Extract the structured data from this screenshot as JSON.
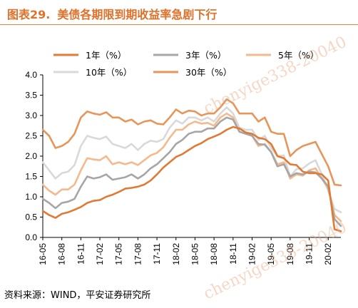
{
  "figure": {
    "number": "图表29.",
    "title": "美债各期限到期收益率急剧下行",
    "source": "资料来源：WIND，平安证券研究所"
  },
  "chart_data": {
    "type": "line",
    "title": "美债各期限到期收益率急剧下行",
    "xlabel": "",
    "ylabel": "",
    "ylim": [
      0,
      4.0
    ],
    "yticks": [
      "0.0",
      "0.5",
      "1.0",
      "1.5",
      "2.0",
      "2.5",
      "3.0",
      "3.5",
      "4.0"
    ],
    "x_tick_labels": [
      "16-05",
      "16-08",
      "16-11",
      "17-02",
      "17-05",
      "17-08",
      "17-11",
      "18-02",
      "18-05",
      "18-08",
      "18-11",
      "19-02",
      "19-05",
      "19-08",
      "19-11",
      "20-02"
    ],
    "x_range": [
      "2016-05",
      "2020-04"
    ],
    "grid": false,
    "legend_placement": "top",
    "series": [
      {
        "name": "1年（%）",
        "color": "#e07a35",
        "points": [
          [
            "2016-05",
            0.65
          ],
          [
            "2016-06",
            0.55
          ],
          [
            "2016-07",
            0.48
          ],
          [
            "2016-08",
            0.58
          ],
          [
            "2016-09",
            0.62
          ],
          [
            "2016-10",
            0.68
          ],
          [
            "2016-11",
            0.75
          ],
          [
            "2016-12",
            0.85
          ],
          [
            "2017-01",
            0.9
          ],
          [
            "2017-02",
            0.92
          ],
          [
            "2017-03",
            1.0
          ],
          [
            "2017-04",
            1.05
          ],
          [
            "2017-05",
            1.12
          ],
          [
            "2017-06",
            1.2
          ],
          [
            "2017-07",
            1.22
          ],
          [
            "2017-08",
            1.25
          ],
          [
            "2017-09",
            1.3
          ],
          [
            "2017-10",
            1.4
          ],
          [
            "2017-11",
            1.55
          ],
          [
            "2017-12",
            1.72
          ],
          [
            "2018-01",
            1.85
          ],
          [
            "2018-02",
            1.98
          ],
          [
            "2018-03",
            2.05
          ],
          [
            "2018-04",
            2.15
          ],
          [
            "2018-05",
            2.25
          ],
          [
            "2018-06",
            2.32
          ],
          [
            "2018-07",
            2.42
          ],
          [
            "2018-08",
            2.48
          ],
          [
            "2018-09",
            2.55
          ],
          [
            "2018-10",
            2.65
          ],
          [
            "2018-11",
            2.72
          ],
          [
            "2018-12",
            2.68
          ],
          [
            "2019-01",
            2.58
          ],
          [
            "2019-02",
            2.55
          ],
          [
            "2019-03",
            2.45
          ],
          [
            "2019-04",
            2.42
          ],
          [
            "2019-05",
            2.3
          ],
          [
            "2019-06",
            2.0
          ],
          [
            "2019-07",
            1.95
          ],
          [
            "2019-08",
            1.8
          ],
          [
            "2019-09",
            1.78
          ],
          [
            "2019-10",
            1.62
          ],
          [
            "2019-11",
            1.58
          ],
          [
            "2019-12",
            1.58
          ],
          [
            "2020-01",
            1.55
          ],
          [
            "2020-02",
            1.4
          ],
          [
            "2020-03",
            0.2
          ],
          [
            "2020-04",
            0.15
          ]
        ]
      },
      {
        "name": "3年（%）",
        "color": "#a6a6a6",
        "points": [
          [
            "2016-05",
            0.95
          ],
          [
            "2016-06",
            0.85
          ],
          [
            "2016-07",
            0.72
          ],
          [
            "2016-08",
            0.85
          ],
          [
            "2016-09",
            0.88
          ],
          [
            "2016-10",
            0.95
          ],
          [
            "2016-11",
            1.25
          ],
          [
            "2016-12",
            1.5
          ],
          [
            "2017-01",
            1.45
          ],
          [
            "2017-02",
            1.48
          ],
          [
            "2017-03",
            1.55
          ],
          [
            "2017-04",
            1.42
          ],
          [
            "2017-05",
            1.45
          ],
          [
            "2017-06",
            1.48
          ],
          [
            "2017-07",
            1.55
          ],
          [
            "2017-08",
            1.45
          ],
          [
            "2017-09",
            1.55
          ],
          [
            "2017-10",
            1.7
          ],
          [
            "2017-11",
            1.8
          ],
          [
            "2017-12",
            1.95
          ],
          [
            "2018-01",
            2.1
          ],
          [
            "2018-02",
            2.3
          ],
          [
            "2018-03",
            2.4
          ],
          [
            "2018-04",
            2.55
          ],
          [
            "2018-05",
            2.6
          ],
          [
            "2018-06",
            2.6
          ],
          [
            "2018-07",
            2.68
          ],
          [
            "2018-08",
            2.68
          ],
          [
            "2018-09",
            2.85
          ],
          [
            "2018-10",
            2.95
          ],
          [
            "2018-11",
            2.9
          ],
          [
            "2018-12",
            2.6
          ],
          [
            "2019-01",
            2.55
          ],
          [
            "2019-02",
            2.5
          ],
          [
            "2019-03",
            2.3
          ],
          [
            "2019-04",
            2.28
          ],
          [
            "2019-05",
            2.1
          ],
          [
            "2019-06",
            1.75
          ],
          [
            "2019-07",
            1.8
          ],
          [
            "2019-08",
            1.5
          ],
          [
            "2019-09",
            1.58
          ],
          [
            "2019-10",
            1.55
          ],
          [
            "2019-11",
            1.62
          ],
          [
            "2019-12",
            1.6
          ],
          [
            "2020-01",
            1.45
          ],
          [
            "2020-02",
            1.25
          ],
          [
            "2020-03",
            0.45
          ],
          [
            "2020-04",
            0.28
          ]
        ]
      },
      {
        "name": "5年（%）",
        "color": "#f4b98c",
        "points": [
          [
            "2016-05",
            1.3
          ],
          [
            "2016-06",
            1.15
          ],
          [
            "2016-07",
            1.05
          ],
          [
            "2016-08",
            1.18
          ],
          [
            "2016-09",
            1.18
          ],
          [
            "2016-10",
            1.3
          ],
          [
            "2016-11",
            1.65
          ],
          [
            "2016-12",
            1.95
          ],
          [
            "2017-01",
            1.92
          ],
          [
            "2017-02",
            1.9
          ],
          [
            "2017-03",
            2.0
          ],
          [
            "2017-04",
            1.8
          ],
          [
            "2017-05",
            1.85
          ],
          [
            "2017-06",
            1.8
          ],
          [
            "2017-07",
            1.85
          ],
          [
            "2017-08",
            1.78
          ],
          [
            "2017-09",
            1.9
          ],
          [
            "2017-10",
            2.02
          ],
          [
            "2017-11",
            2.08
          ],
          [
            "2017-12",
            2.22
          ],
          [
            "2018-01",
            2.45
          ],
          [
            "2018-02",
            2.65
          ],
          [
            "2018-03",
            2.65
          ],
          [
            "2018-04",
            2.78
          ],
          [
            "2018-05",
            2.85
          ],
          [
            "2018-06",
            2.8
          ],
          [
            "2018-07",
            2.82
          ],
          [
            "2018-08",
            2.75
          ],
          [
            "2018-09",
            2.95
          ],
          [
            "2018-10",
            3.05
          ],
          [
            "2018-11",
            2.95
          ],
          [
            "2018-12",
            2.6
          ],
          [
            "2019-01",
            2.55
          ],
          [
            "2019-02",
            2.5
          ],
          [
            "2019-03",
            2.25
          ],
          [
            "2019-04",
            2.3
          ],
          [
            "2019-05",
            2.1
          ],
          [
            "2019-06",
            1.8
          ],
          [
            "2019-07",
            1.85
          ],
          [
            "2019-08",
            1.45
          ],
          [
            "2019-09",
            1.55
          ],
          [
            "2019-10",
            1.52
          ],
          [
            "2019-11",
            1.65
          ],
          [
            "2019-12",
            1.7
          ],
          [
            "2020-01",
            1.45
          ],
          [
            "2020-02",
            1.2
          ],
          [
            "2020-03",
            0.55
          ],
          [
            "2020-04",
            0.4
          ]
        ]
      },
      {
        "name": "10年（%）",
        "color": "#d9d9d9",
        "points": [
          [
            "2016-05",
            1.85
          ],
          [
            "2016-06",
            1.65
          ],
          [
            "2016-07",
            1.45
          ],
          [
            "2016-08",
            1.58
          ],
          [
            "2016-09",
            1.62
          ],
          [
            "2016-10",
            1.78
          ],
          [
            "2016-11",
            2.25
          ],
          [
            "2016-12",
            2.5
          ],
          [
            "2017-01",
            2.45
          ],
          [
            "2017-02",
            2.42
          ],
          [
            "2017-03",
            2.48
          ],
          [
            "2017-04",
            2.3
          ],
          [
            "2017-05",
            2.25
          ],
          [
            "2017-06",
            2.2
          ],
          [
            "2017-07",
            2.3
          ],
          [
            "2017-08",
            2.15
          ],
          [
            "2017-09",
            2.3
          ],
          [
            "2017-10",
            2.38
          ],
          [
            "2017-11",
            2.35
          ],
          [
            "2017-12",
            2.42
          ],
          [
            "2018-01",
            2.7
          ],
          [
            "2018-02",
            2.88
          ],
          [
            "2018-03",
            2.8
          ],
          [
            "2018-04",
            2.95
          ],
          [
            "2018-05",
            2.95
          ],
          [
            "2018-06",
            2.88
          ],
          [
            "2018-07",
            2.95
          ],
          [
            "2018-08",
            2.85
          ],
          [
            "2018-09",
            3.05
          ],
          [
            "2018-10",
            3.2
          ],
          [
            "2018-11",
            3.05
          ],
          [
            "2018-12",
            2.7
          ],
          [
            "2019-01",
            2.65
          ],
          [
            "2019-02",
            2.65
          ],
          [
            "2019-03",
            2.4
          ],
          [
            "2019-04",
            2.5
          ],
          [
            "2019-05",
            2.2
          ],
          [
            "2019-06",
            2.0
          ],
          [
            "2019-07",
            2.02
          ],
          [
            "2019-08",
            1.5
          ],
          [
            "2019-09",
            1.68
          ],
          [
            "2019-10",
            1.7
          ],
          [
            "2019-11",
            1.82
          ],
          [
            "2019-12",
            1.9
          ],
          [
            "2020-01",
            1.55
          ],
          [
            "2020-02",
            1.15
          ],
          [
            "2020-03",
            0.7
          ],
          [
            "2020-04",
            0.62
          ]
        ]
      },
      {
        "name": "30年（%）",
        "color": "#e8955a",
        "points": [
          [
            "2016-05",
            2.65
          ],
          [
            "2016-06",
            2.5
          ],
          [
            "2016-07",
            2.2
          ],
          [
            "2016-08",
            2.25
          ],
          [
            "2016-09",
            2.35
          ],
          [
            "2016-10",
            2.55
          ],
          [
            "2016-11",
            2.95
          ],
          [
            "2016-12",
            3.1
          ],
          [
            "2017-01",
            3.05
          ],
          [
            "2017-02",
            3.02
          ],
          [
            "2017-03",
            3.08
          ],
          [
            "2017-04",
            2.95
          ],
          [
            "2017-05",
            2.95
          ],
          [
            "2017-06",
            2.85
          ],
          [
            "2017-07",
            2.9
          ],
          [
            "2017-08",
            2.78
          ],
          [
            "2017-09",
            2.85
          ],
          [
            "2017-10",
            2.88
          ],
          [
            "2017-11",
            2.8
          ],
          [
            "2017-12",
            2.78
          ],
          [
            "2018-01",
            2.95
          ],
          [
            "2018-02",
            3.15
          ],
          [
            "2018-03",
            3.05
          ],
          [
            "2018-04",
            3.12
          ],
          [
            "2018-05",
            3.1
          ],
          [
            "2018-06",
            3.0
          ],
          [
            "2018-07",
            3.05
          ],
          [
            "2018-08",
            3.05
          ],
          [
            "2018-09",
            3.2
          ],
          [
            "2018-10",
            3.4
          ],
          [
            "2018-11",
            3.3
          ],
          [
            "2018-12",
            3.05
          ],
          [
            "2019-01",
            3.05
          ],
          [
            "2019-02",
            3.05
          ],
          [
            "2019-03",
            2.85
          ],
          [
            "2019-04",
            2.95
          ],
          [
            "2019-05",
            2.6
          ],
          [
            "2019-06",
            2.55
          ],
          [
            "2019-07",
            2.55
          ],
          [
            "2019-08",
            2.0
          ],
          [
            "2019-09",
            2.15
          ],
          [
            "2019-10",
            2.25
          ],
          [
            "2019-11",
            2.3
          ],
          [
            "2019-12",
            2.35
          ],
          [
            "2020-01",
            2.05
          ],
          [
            "2020-02",
            1.75
          ],
          [
            "2020-03",
            1.3
          ],
          [
            "2020-04",
            1.28
          ]
        ]
      }
    ]
  },
  "watermark": "chenyige338-20040"
}
